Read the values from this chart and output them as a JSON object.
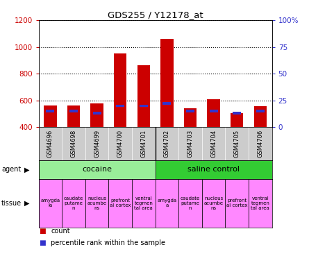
{
  "title": "GDS255 / Y12178_at",
  "samples": [
    "GSM4696",
    "GSM4698",
    "GSM4699",
    "GSM4700",
    "GSM4701",
    "GSM4702",
    "GSM4703",
    "GSM4704",
    "GSM4705",
    "GSM4706"
  ],
  "count_values": [
    560,
    560,
    575,
    950,
    865,
    1060,
    540,
    610,
    505,
    555
  ],
  "percentile_values": [
    15,
    15,
    13,
    20,
    20,
    22,
    15,
    15,
    13,
    15
  ],
  "bar_bottom": 400,
  "count_color": "#cc0000",
  "percentile_color": "#3333cc",
  "ylim_left": [
    400,
    1200
  ],
  "ylim_right": [
    0,
    100
  ],
  "yticks_left": [
    400,
    600,
    800,
    1000,
    1200
  ],
  "yticks_right": [
    0,
    25,
    50,
    75,
    100
  ],
  "yticklabels_right": [
    "0",
    "25",
    "50",
    "75",
    "100%"
  ],
  "cocaine_color": "#99ee99",
  "saline_color": "#33cc33",
  "tissue_color": "#ff88ff",
  "bar_width": 0.55,
  "background_color": "#ffffff",
  "left_tick_color": "#cc0000",
  "right_tick_color": "#3333cc",
  "sample_box_color": "#cccccc",
  "tissue_labels": [
    "amygda\nla",
    "caudate\nputame\nn",
    "nucleus\nacumbe\nns",
    "prefront\nal cortex",
    "ventral\ntegmen\ntal area",
    "amygda\na",
    "caudate\nputame\nn",
    "nucleus\nacumbe\nns",
    "prefront\nal cortex",
    "ventral\ntegmen\ntal area"
  ],
  "legend_count_label": "count",
  "legend_pct_label": "percentile rank within the sample",
  "agent_label": "agent",
  "tissue_label": "tissue"
}
